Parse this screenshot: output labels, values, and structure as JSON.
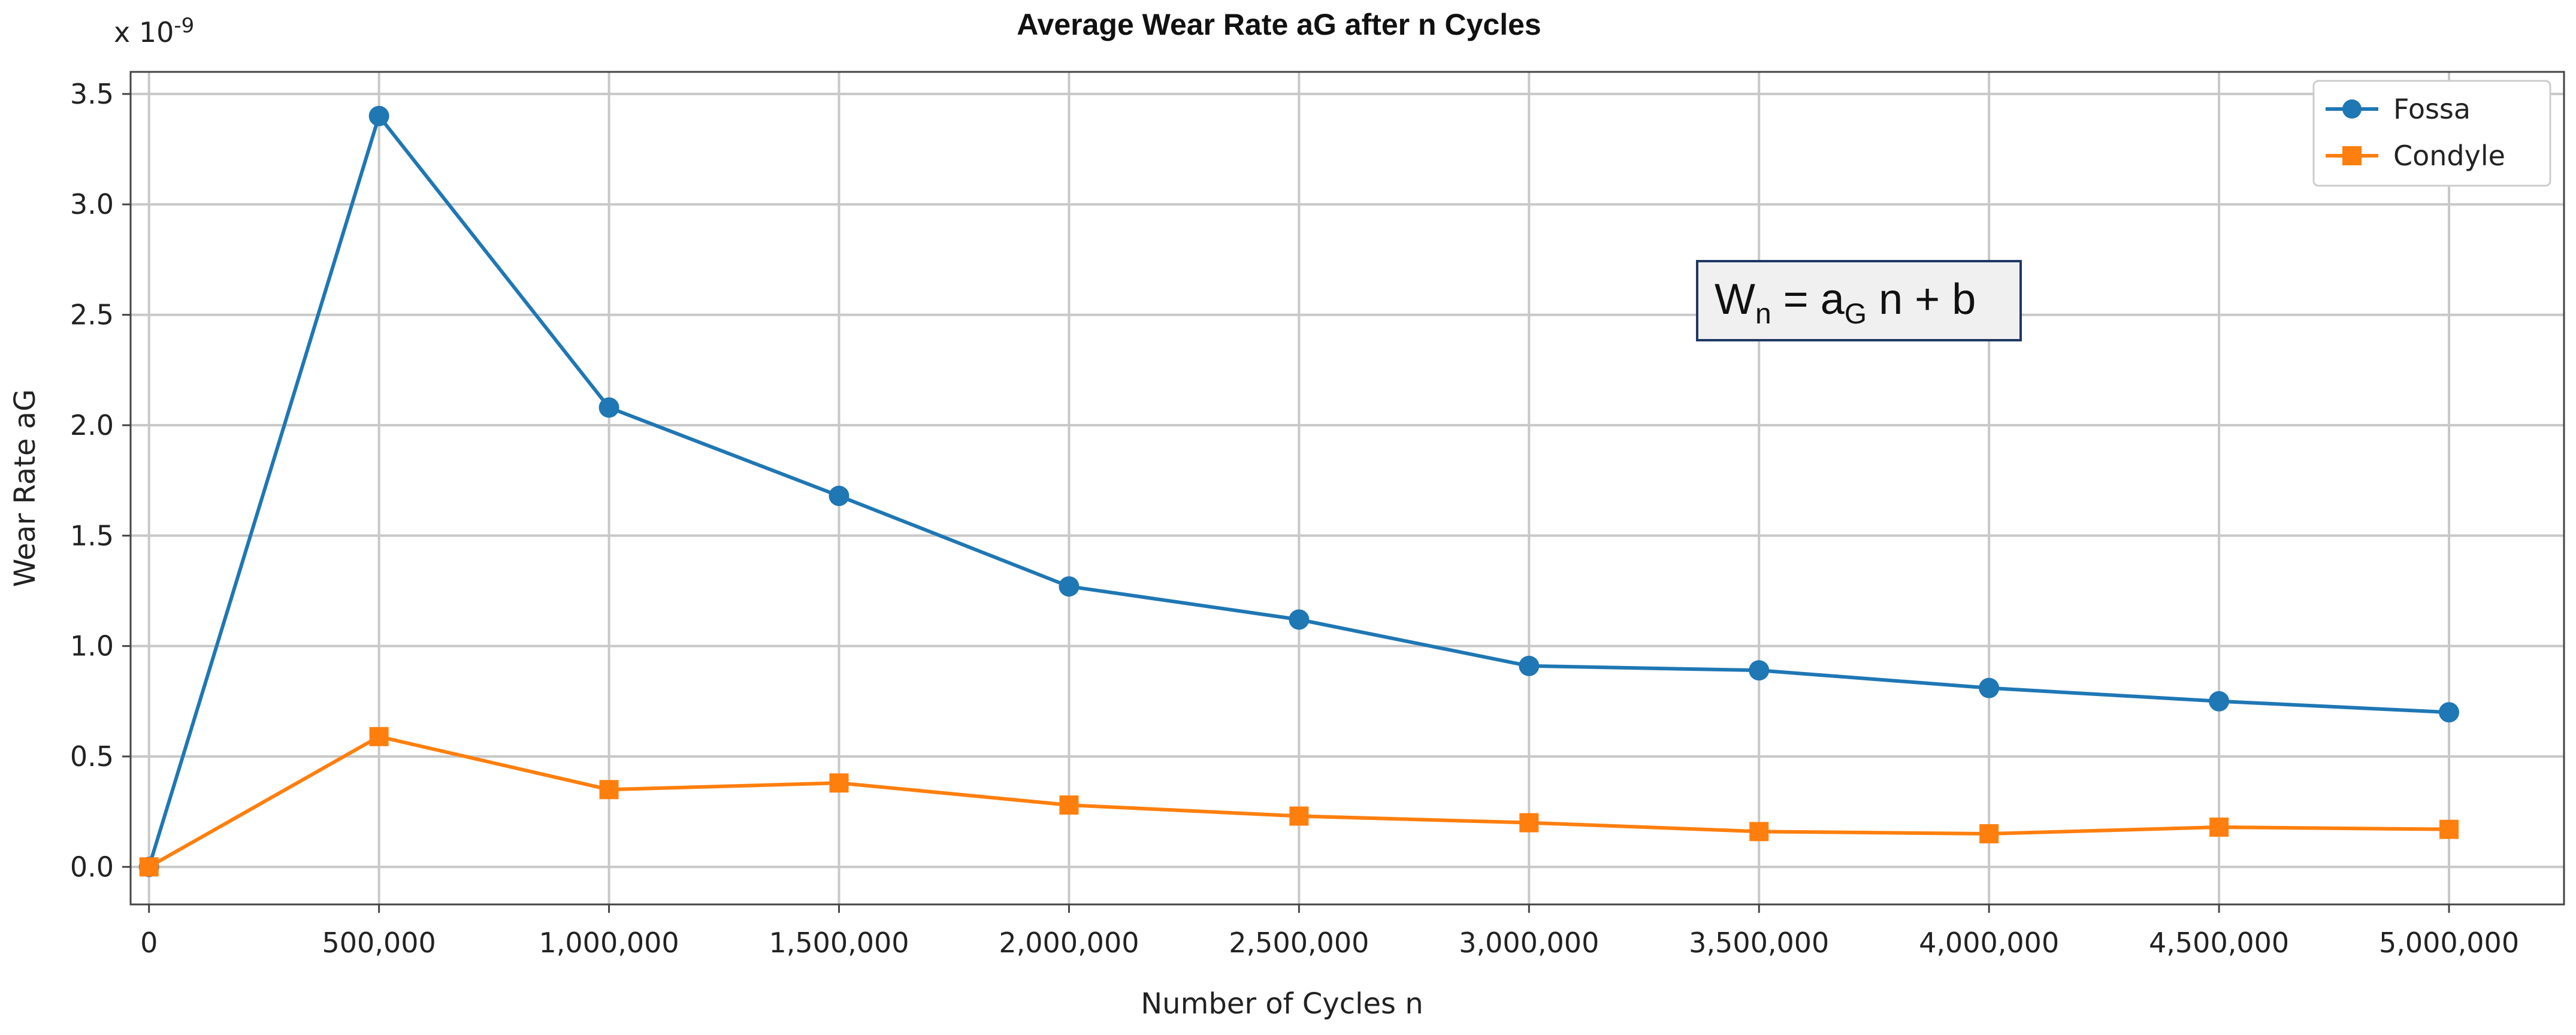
{
  "chart_data": {
    "type": "line",
    "title": "Average Wear Rate aG after n Cycles",
    "xlabel": "Number of Cycles n",
    "ylabel": "Wear Rate aG",
    "y_multiplier": "x 10",
    "y_exponent": "-9",
    "x": [
      0,
      500000,
      1000000,
      1500000,
      2000000,
      2500000,
      3000000,
      3500000,
      4000000,
      4500000,
      5000000
    ],
    "x_tick_labels": [
      "0",
      "500,000",
      "1,000,000",
      "1,500,000",
      "2,000,000",
      "2,500,000",
      "3,000,000",
      "3,500,000",
      "4,000,000",
      "4,500,000",
      "5,000,000"
    ],
    "y_ticks": [
      0.0,
      0.5,
      1.0,
      1.5,
      2.0,
      2.5,
      3.0,
      3.5
    ],
    "y_tick_labels": [
      "0.0",
      "0.5",
      "1.0",
      "1.5",
      "2.0",
      "2.5",
      "3.0",
      "3.5"
    ],
    "xlim": [
      -40000,
      5250000
    ],
    "ylim": [
      -0.17,
      3.6
    ],
    "grid": true,
    "legend_position": "top-right",
    "series": [
      {
        "name": "Fossa",
        "marker": "circle",
        "color": "#1f77b4",
        "values": [
          0.0,
          3.4,
          2.08,
          1.68,
          1.27,
          1.12,
          0.91,
          0.89,
          0.81,
          0.75,
          0.7
        ]
      },
      {
        "name": "Condyle",
        "marker": "square",
        "color": "#ff7f0e",
        "values": [
          0.0,
          0.59,
          0.35,
          0.38,
          0.28,
          0.23,
          0.2,
          0.16,
          0.15,
          0.18,
          0.17
        ]
      }
    ],
    "annotation": {
      "W": "W",
      "n_sub": "n",
      "eq": " = a",
      "G_sub": "G",
      "rest": " n + b"
    }
  }
}
